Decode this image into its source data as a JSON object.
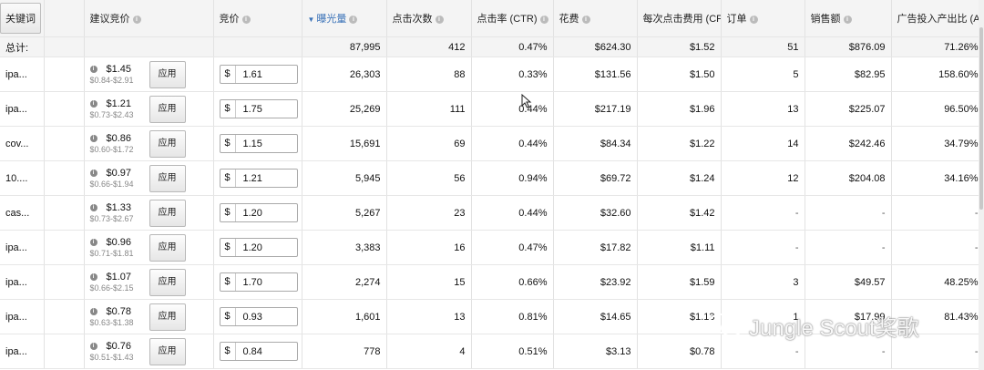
{
  "header": {
    "keyword_button": "关键词",
    "suggested_bid": "建议竞价",
    "bid": "竞价",
    "impressions": "曝光量",
    "clicks": "点击次数",
    "ctr": "点击率 (CTR)",
    "spend": "花费",
    "cpc": "每次点击费用 (CPC",
    "orders": "订单",
    "sales": "销售额",
    "acos": "广告投入产出比 (A"
  },
  "total": {
    "label": "总计:",
    "impressions": "87,995",
    "clicks": "412",
    "ctr": "0.47%",
    "spend": "$624.30",
    "cpc": "$1.52",
    "orders": "51",
    "sales": "$876.09",
    "acos": "71.26%"
  },
  "apply_label": "应用",
  "currency": "$",
  "rows": [
    {
      "keyword": "ipa...",
      "suggested": "$1.45",
      "range": "$0.84-$2.91",
      "bid": "1.61",
      "impressions": "26,303",
      "clicks": "88",
      "ctr": "0.33%",
      "spend": "$131.56",
      "cpc": "$1.50",
      "orders": "5",
      "sales": "$82.95",
      "acos": "158.60%"
    },
    {
      "keyword": "ipa...",
      "suggested": "$1.21",
      "range": "$0.73-$2.43",
      "bid": "1.75",
      "impressions": "25,269",
      "clicks": "111",
      "ctr": "0.44%",
      "spend": "$217.19",
      "cpc": "$1.96",
      "orders": "13",
      "sales": "$225.07",
      "acos": "96.50%"
    },
    {
      "keyword": "cov...",
      "suggested": "$0.86",
      "range": "$0.60-$1.72",
      "bid": "1.15",
      "impressions": "15,691",
      "clicks": "69",
      "ctr": "0.44%",
      "spend": "$84.34",
      "cpc": "$1.22",
      "orders": "14",
      "sales": "$242.46",
      "acos": "34.79%"
    },
    {
      "keyword": "10....",
      "suggested": "$0.97",
      "range": "$0.66-$1.94",
      "bid": "1.21",
      "impressions": "5,945",
      "clicks": "56",
      "ctr": "0.94%",
      "spend": "$69.72",
      "cpc": "$1.24",
      "orders": "12",
      "sales": "$204.08",
      "acos": "34.16%"
    },
    {
      "keyword": "cas...",
      "suggested": "$1.33",
      "range": "$0.73-$2.67",
      "bid": "1.20",
      "impressions": "5,267",
      "clicks": "23",
      "ctr": "0.44%",
      "spend": "$32.60",
      "cpc": "$1.42",
      "orders": "-",
      "sales": "-",
      "acos": "-"
    },
    {
      "keyword": "ipa...",
      "suggested": "$0.96",
      "range": "$0.71-$1.81",
      "bid": "1.20",
      "impressions": "3,383",
      "clicks": "16",
      "ctr": "0.47%",
      "spend": "$17.82",
      "cpc": "$1.11",
      "orders": "-",
      "sales": "-",
      "acos": "-"
    },
    {
      "keyword": "ipa...",
      "suggested": "$1.07",
      "range": "$0.66-$2.15",
      "bid": "1.70",
      "impressions": "2,274",
      "clicks": "15",
      "ctr": "0.66%",
      "spend": "$23.92",
      "cpc": "$1.59",
      "orders": "3",
      "sales": "$49.57",
      "acos": "48.25%"
    },
    {
      "keyword": "ipa...",
      "suggested": "$0.78",
      "range": "$0.63-$1.38",
      "bid": "0.93",
      "impressions": "1,601",
      "clicks": "13",
      "ctr": "0.81%",
      "spend": "$14.65",
      "cpc": "$1.13",
      "orders": "1",
      "sales": "$17.99",
      "acos": "81.43%"
    },
    {
      "keyword": "ipa...",
      "suggested": "$0.76",
      "range": "$0.51-$1.43",
      "bid": "0.84",
      "impressions": "778",
      "clicks": "4",
      "ctr": "0.51%",
      "spend": "$3.13",
      "cpc": "$0.78",
      "orders": "-",
      "sales": "-",
      "acos": "-"
    }
  ],
  "watermark": "Jungle Scout奖歌"
}
